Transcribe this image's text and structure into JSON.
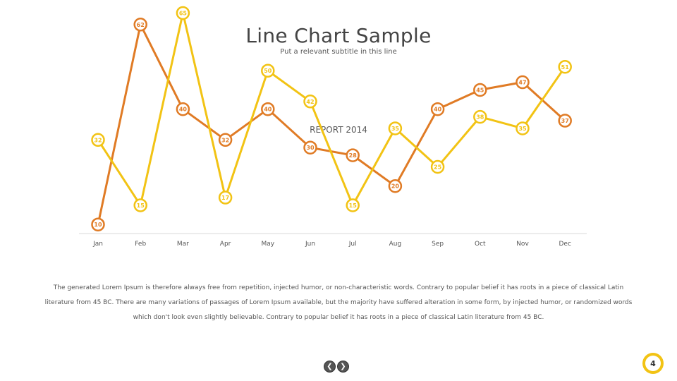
{
  "slide": {
    "title": "Line Chart Sample",
    "subtitle": "Put a relevant subtitle in this line",
    "body": "The generated Lorem Ipsum is therefore always free from repetition, injected humor, or non-characteristic words. Contrary to popular belief it has roots in a piece of classical Latin literature from 45 BC. There are many variations of passages of Lorem Ipsum available, but the majority have suffered alteration in some form, by injected humor, or randomized words which don't look even slightly believable. Contrary to popular belief it has roots in a piece of classical Latin literature from 45 BC.",
    "page_number": "4"
  },
  "nav": {
    "prev_icon": "chevron-left-icon",
    "next_icon": "chevron-right-icon"
  },
  "chart_data": {
    "type": "line",
    "title": "REPORT 2014",
    "categories": [
      "Jan",
      "Feb",
      "Mar",
      "Apr",
      "May",
      "Jun",
      "Jul",
      "Aug",
      "Sep",
      "Oct",
      "Nov",
      "Dec"
    ],
    "series": [
      {
        "color": "#E07B25",
        "values": [
          10,
          62,
          40,
          32,
          40,
          30,
          28,
          20,
          40,
          45,
          47,
          37
        ]
      },
      {
        "color": "#F2C314",
        "values": [
          32,
          15,
          65,
          17,
          50,
          42,
          15,
          35,
          25,
          38,
          35,
          51
        ]
      }
    ],
    "ylim": [
      0,
      80
    ],
    "grid": false,
    "legend": "none"
  }
}
